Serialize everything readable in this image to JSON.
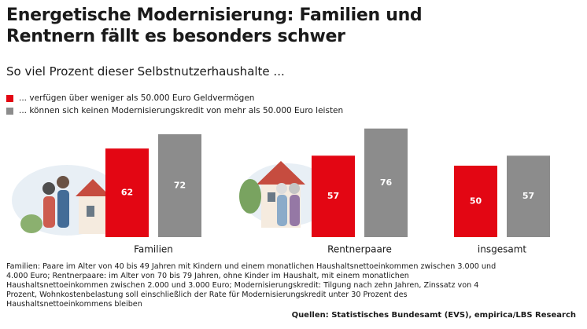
{
  "chart_data": {
    "type": "bar",
    "title": "Energetische Modernisierung: Familien und Rentnern fällt es besonders schwer",
    "subtitle": "So viel Prozent dieser Selbstnutzerhaushalte ...",
    "categories": [
      "Familien",
      "Rentnerpaare",
      "insgesamt"
    ],
    "series": [
      {
        "name": "... verfügen über weniger als 50.000 Euro Geldvermögen",
        "color": "#e30613",
        "values": [
          62,
          57,
          50
        ]
      },
      {
        "name": "... können sich keinen Modernisierungskredit von mehr als 50.000 Euro leisten",
        "color": "#8c8c8c",
        "values": [
          72,
          76,
          57
        ]
      }
    ],
    "note": "Familien: Paare im Alter von 40 bis 49 Jahren mit Kindern und einem monatlichen Haushaltsnettoeinkommen zwischen 3.000 und 4.000 Euro; Rentnerpaare: im Alter von 70 bis 79 Jahren, ohne Kinder im Haushalt, mit einem monatlichen Haushaltsnettoeinkommen zwischen 2.000 und 3.000 Euro; Modernisierungskredit: Tilgung nach zehn Jahren, Zinssatz von 4 Prozent, Wohnkostenbelastung soll einschließlich der Rate für Modernisierungskredit unter 30 Prozent des Haushaltsnettoeinkommens bleiben",
    "source": "Quellen: Statistisches Bundesamt (EVS), empirica/LBS Research"
  }
}
